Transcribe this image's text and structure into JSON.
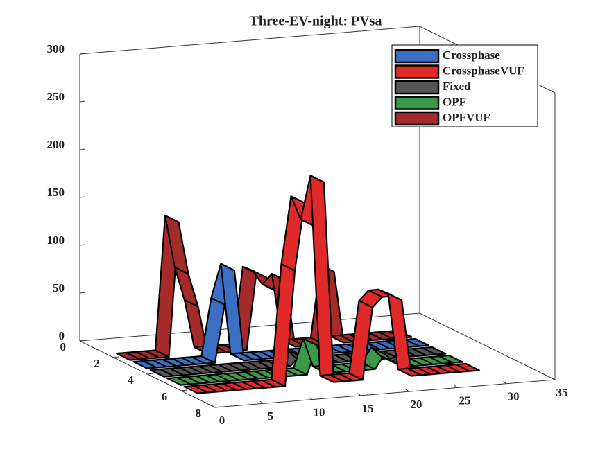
{
  "chart_data": {
    "type": "ribbon3d",
    "title": "Three-EV-night: PVsa",
    "x": [
      1,
      2,
      3,
      4,
      5,
      6,
      7,
      8,
      9,
      10,
      11,
      12,
      13,
      14,
      15,
      16,
      17,
      18,
      19,
      20,
      21,
      22,
      23,
      24,
      25,
      26,
      27,
      28,
      29,
      30
    ],
    "series": [
      {
        "name": "Crossphase",
        "color": "#3a6fc4",
        "values": [
          0,
          0,
          0,
          0,
          0,
          0,
          0,
          0,
          60,
          95,
          0,
          0,
          0,
          0,
          0,
          0,
          0,
          0,
          0,
          0,
          0,
          0,
          0,
          0,
          0,
          0,
          0,
          0,
          0,
          0
        ]
      },
      {
        "name": "CrossphaseVUF",
        "color": "#e02a2a",
        "values": [
          0,
          0,
          0,
          0,
          0,
          0,
          0,
          0,
          0,
          0,
          120,
          190,
          165,
          210,
          0,
          0,
          0,
          0,
          75,
          85,
          85,
          80,
          0,
          0,
          0,
          0,
          0,
          0,
          0,
          0
        ]
      },
      {
        "name": "Fixed",
        "color": "#555555",
        "values": [
          0,
          0,
          0,
          0,
          0,
          0,
          0,
          0,
          0,
          0,
          0,
          0,
          0,
          0,
          10,
          0,
          0,
          0,
          0,
          0,
          0,
          0,
          0,
          0,
          0,
          0,
          0,
          0,
          0,
          0
        ]
      },
      {
        "name": "OPF",
        "color": "#3a9a4a",
        "values": [
          0,
          0,
          0,
          0,
          0,
          0,
          0,
          0,
          0,
          0,
          0,
          0,
          0,
          0,
          30,
          0,
          0,
          0,
          0,
          0,
          0,
          15,
          5,
          0,
          0,
          0,
          0,
          0,
          0,
          0
        ]
      },
      {
        "name": "OPFVUF",
        "color": "#a52a2a",
        "values": [
          0,
          0,
          0,
          0,
          0,
          140,
          85,
          50,
          0,
          0,
          0,
          0,
          0,
          80,
          75,
          60,
          70,
          0,
          0,
          0,
          0,
          75,
          0,
          0,
          0,
          0,
          0,
          0,
          0,
          0
        ]
      }
    ],
    "xlim": [
      0,
      35
    ],
    "xticks": [
      0,
      5,
      10,
      15,
      20,
      25,
      30,
      35
    ],
    "ylim": [
      0,
      8
    ],
    "yticks": [
      0,
      2,
      4,
      6,
      8
    ],
    "zlim": [
      0,
      300
    ],
    "zticks": [
      0,
      50,
      100,
      150,
      200,
      250,
      300
    ],
    "legend": "northeast"
  }
}
